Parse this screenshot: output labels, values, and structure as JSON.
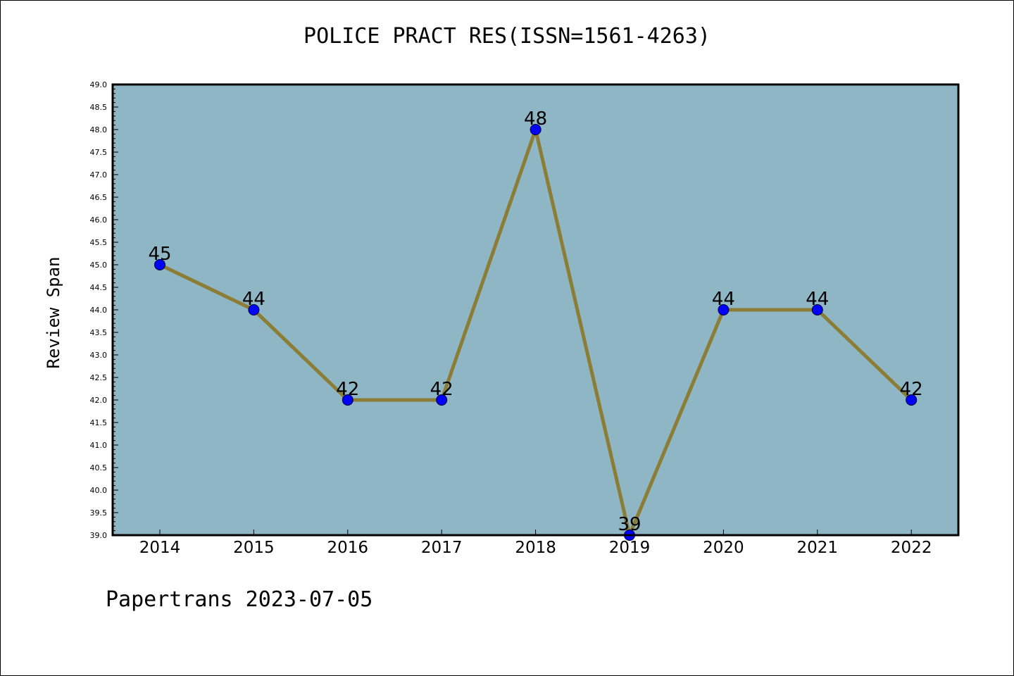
{
  "page": {
    "footer": "Papertrans 2023-07-05"
  },
  "colors": {
    "plot_bg": "#8fb6c4",
    "line": "#8b7d35",
    "marker": "#0000ff",
    "axis": "#000000"
  },
  "chart_data": {
    "type": "line",
    "title": "POLICE PRACT RES(ISSN=1561-4263)",
    "xlabel": "",
    "ylabel": "Review Span",
    "categories": [
      "2014",
      "2015",
      "2016",
      "2017",
      "2018",
      "2019",
      "2020",
      "2021",
      "2022"
    ],
    "series": [
      {
        "values": [
          45,
          44,
          42,
          42,
          48,
          39,
          44,
          44,
          42
        ]
      }
    ],
    "data_labels": [
      "45",
      "44",
      "42",
      "42",
      "48",
      "39",
      "44",
      "44",
      "42"
    ],
    "ylim": [
      39.0,
      49.0
    ],
    "yticks": [
      "39.0",
      "39.5",
      "40.0",
      "40.5",
      "41.0",
      "41.5",
      "42.0",
      "42.5",
      "43.0",
      "43.5",
      "44.0",
      "44.5",
      "45.0",
      "45.5",
      "46.0",
      "46.5",
      "47.0",
      "47.5",
      "48.0",
      "48.5",
      "49.0"
    ],
    "grid": false,
    "legend": "none"
  }
}
